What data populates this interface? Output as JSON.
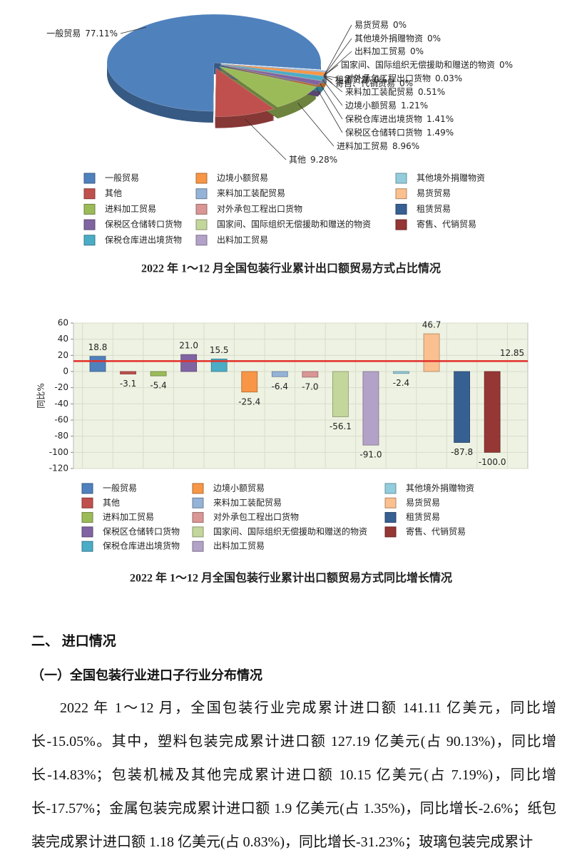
{
  "chart_data": [
    {
      "type": "pie",
      "title": "2022 年 1～12 月全国包装行业累计出口额贸易方式占比情况",
      "categories": [
        "一般贸易",
        "其他",
        "进料加工贸易",
        "保税区仓储转口货物",
        "保税仓库进出境货物",
        "边境小额贸易",
        "来料加工装配贸易",
        "对外承包工程出口货物",
        "国家间、国际组织无偿援助和赠送的物资",
        "出料加工贸易",
        "其他境外捐赠物资",
        "易货贸易",
        "租赁贸易",
        "寄售、代销贸易"
      ],
      "values": [
        77.11,
        9.28,
        8.96,
        1.49,
        1.41,
        1.21,
        0.51,
        0.03,
        0,
        0,
        0,
        0,
        0,
        0
      ],
      "value_labels": [
        "77.11%",
        "9.28%",
        "8.96%",
        "1.49%",
        "1.41%",
        "1.21%",
        "0.51%",
        "0.03%",
        "0%",
        "0%",
        "0%",
        "0%",
        "0%",
        "0%"
      ],
      "colors": [
        "#4f81bd",
        "#c0504d",
        "#9bbb59",
        "#8064a2",
        "#4bacc6",
        "#f79646",
        "#95b3d7",
        "#d99694",
        "#c3d69b",
        "#b3a2c7",
        "#93cddd",
        "#fac08f",
        "#376092",
        "#953735"
      ]
    },
    {
      "type": "bar",
      "title": "2022 年 1～12 月全国包装行业累计出口额贸易方式同比增长情况",
      "ylabel": "同比%",
      "categories": [
        "一般贸易",
        "其他",
        "进料加工贸易",
        "保税区仓储转口货物",
        "保税仓库进出境货物",
        "边境小额贸易",
        "来料加工装配贸易",
        "对外承包工程出口货物",
        "国家间、国际组织无偿援助和赠送的物资",
        "出料加工贸易",
        "其他境外捐赠物资",
        "易货贸易",
        "租赁贸易",
        "寄售、代销贸易"
      ],
      "values": [
        18.8,
        -3.1,
        -5.4,
        21.0,
        15.5,
        -25.4,
        -6.4,
        -7.0,
        -56.1,
        -91.0,
        -2.4,
        46.7,
        -87.8,
        -100.0
      ],
      "value_labels": [
        "18.8",
        "-3.1",
        "-5.4",
        "21.0",
        "15.5",
        "-25.4",
        "-6.4",
        "-7.0",
        "-56.1",
        "-91.0",
        "-2.4",
        "46.7",
        "-87.8",
        "-100.0"
      ],
      "colors": [
        "#4f81bd",
        "#c0504d",
        "#9bbb59",
        "#8064a2",
        "#4bacc6",
        "#f79646",
        "#95b3d7",
        "#d99694",
        "#c3d69b",
        "#b3a2c7",
        "#93cddd",
        "#fac08f",
        "#376092",
        "#953735"
      ],
      "ylim": [
        -120,
        60
      ],
      "yticks": [
        -120,
        -100,
        -80,
        -60,
        -40,
        -20,
        0,
        20,
        40,
        60
      ],
      "grid": true,
      "reference_line": {
        "value": 12.85,
        "color": "#e0302a"
      }
    }
  ],
  "document": {
    "heading": "二、 进口情况",
    "subheading": "（一）全国包装行业进口子行业分布情况",
    "paragraph": "2022 年 1～12 月，全国包装行业完成累计进口额 141.11 亿美元，同比增长-15.05%。其中，塑料包装完成累计进口额 127.19 亿美元(占 90.13%)，同比增长-14.83%；包装机械及其他完成累计进口额 10.15 亿美元(占 7.19%)，同比增长-17.57%；金属包装完成累计进口额 1.9 亿美元(占 1.35%)，同比增长-2.6%；纸包装完成累计进口额 1.18 亿美元(占 0.83%)，同比增长-31.23%；玻璃包装完成累计"
  }
}
